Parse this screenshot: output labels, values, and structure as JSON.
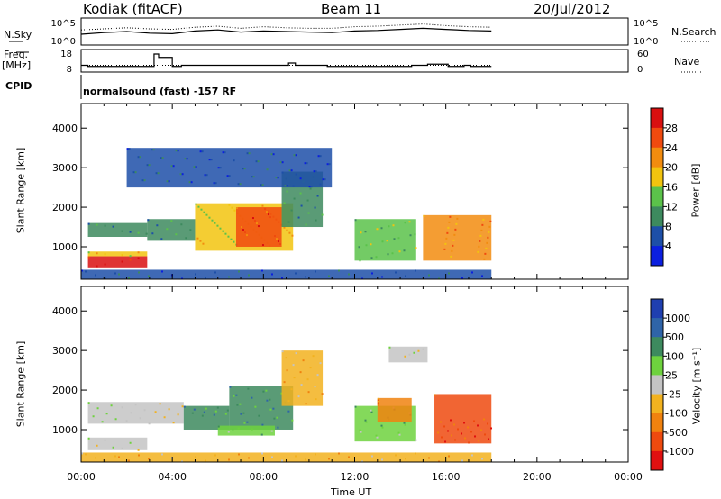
{
  "header": {
    "station": "Kodiak (fitACF)",
    "beam": "Beam 11",
    "date": "20/Jul/2012"
  },
  "labels": {
    "nsky": "N.Sky",
    "nsearch": "N.Search",
    "freq": "Freq.",
    "freq_unit": "[MHz]",
    "nave": "Nave",
    "cpid": "CPID",
    "cpid_value": "normalsound (fast) -157 RF",
    "power_axis": "Power [dB]",
    "velocity_axis": "Velocity [m s⁻¹]",
    "yaxis": "Slant Range [km]",
    "xaxis": "Time UT"
  },
  "chart_data": [
    {
      "type": "line",
      "name": "noise",
      "yticks_left": [
        "10^5",
        "10^0"
      ],
      "yticks_right": [
        "10^5",
        "10^0"
      ],
      "series": [
        {
          "name": "N.Sky",
          "style": "solid",
          "x": [
            0,
            1,
            2,
            3,
            4,
            5,
            6,
            7,
            8,
            9,
            10,
            11,
            12,
            13,
            14,
            15,
            16,
            17,
            18
          ],
          "values": [
            2.0,
            2.3,
            2.5,
            2.2,
            2.1,
            2.6,
            2.8,
            2.4,
            2.6,
            2.5,
            2.4,
            2.3,
            2.6,
            2.7,
            2.9,
            3.1,
            2.9,
            2.7,
            2.6
          ]
        },
        {
          "name": "N.Search",
          "style": "dotted",
          "x": [
            0,
            1,
            2,
            3,
            4,
            5,
            6,
            7,
            8,
            9,
            10,
            11,
            12,
            13,
            14,
            15,
            16,
            17,
            18
          ],
          "values": [
            2.8,
            3.0,
            3.2,
            3.0,
            2.9,
            3.3,
            3.5,
            3.1,
            3.4,
            3.2,
            3.1,
            3.1,
            3.4,
            3.5,
            3.7,
            3.9,
            3.6,
            3.4,
            3.3
          ]
        }
      ],
      "xlim": [
        0,
        24
      ]
    },
    {
      "type": "line",
      "name": "freq-nave",
      "yticks_left": [
        "18",
        "8"
      ],
      "yticks_right": [
        "60",
        "0"
      ],
      "series": [
        {
          "name": "Freq",
          "style": "solid",
          "x": [
            0,
            0.3,
            2.9,
            3.2,
            3.4,
            4.0,
            4.4,
            6.9,
            8.0,
            9.1,
            9.4,
            10.8,
            11.1,
            13.5,
            14.5,
            15.2,
            16.1,
            16.8,
            17.1,
            18
          ],
          "values": [
            11,
            10.5,
            10.5,
            16,
            14.5,
            10.5,
            11,
            11,
            11,
            12,
            11,
            10.5,
            10.5,
            10.5,
            11,
            11.5,
            10.5,
            11,
            10.5,
            10.5
          ]
        },
        {
          "name": "Nave",
          "style": "dotted",
          "x": [
            0,
            18
          ],
          "values": [
            18,
            18
          ]
        }
      ],
      "xlim": [
        0,
        24
      ]
    },
    {
      "type": "heatmap",
      "name": "power",
      "title": "",
      "ylabel": "Slant Range [km]",
      "ylim": [
        180,
        4620
      ],
      "xlim": [
        0,
        24
      ],
      "yticks": [
        1000,
        2000,
        3000,
        4000
      ],
      "colorbar_label": "Power [dB]",
      "colorbar_ticks": [
        4,
        8,
        12,
        16,
        20,
        24,
        28
      ],
      "colors": [
        "#0b1fe0",
        "#1d4fa8",
        "#3d8a5e",
        "#5bc24a",
        "#f2c40f",
        "#f28c0f",
        "#f04a0f",
        "#d91010"
      ],
      "regions": [
        {
          "t0": 0.3,
          "t1": 2.9,
          "r0": 480,
          "r1": 760,
          "level": 7
        },
        {
          "t0": 0.3,
          "t1": 2.9,
          "r0": 760,
          "r1": 880,
          "level": 4
        },
        {
          "t0": 0.3,
          "t1": 2.9,
          "r0": 1250,
          "r1": 1600,
          "level": 2
        },
        {
          "t0": 2.9,
          "t1": 5.0,
          "r0": 1150,
          "r1": 1700,
          "level": 2
        },
        {
          "t0": 5.0,
          "t1": 9.3,
          "r0": 900,
          "r1": 2100,
          "level": 4
        },
        {
          "t0": 6.8,
          "t1": 8.8,
          "r0": 1000,
          "r1": 2000,
          "level": 6
        },
        {
          "t0": 8.8,
          "t1": 10.6,
          "r0": 1500,
          "r1": 2900,
          "level": 2
        },
        {
          "t0": 12.0,
          "t1": 14.7,
          "r0": 650,
          "r1": 1700,
          "level": 3
        },
        {
          "t0": 15.0,
          "t1": 18.0,
          "r0": 650,
          "r1": 1800,
          "level": 5
        },
        {
          "t0": 2.0,
          "t1": 11.0,
          "r0": 2500,
          "r1": 3500,
          "level": 1
        },
        {
          "t0": 0.0,
          "t1": 18.0,
          "r0": 180,
          "r1": 420,
          "level": 1
        }
      ]
    },
    {
      "type": "heatmap",
      "name": "velocity",
      "title": "",
      "ylabel": "Slant Range [km]",
      "ylim": [
        180,
        4620
      ],
      "xlim": [
        0,
        24
      ],
      "yticks": [
        1000,
        2000,
        3000,
        4000
      ],
      "xticks": [
        "00:00",
        "04:00",
        "08:00",
        "12:00",
        "16:00",
        "20:00",
        "00:00"
      ],
      "xlabel": "Time UT",
      "colorbar_label": "Velocity [m s⁻¹]",
      "colorbar_ticks": [
        1000,
        500,
        100,
        25,
        -25,
        -100,
        -500,
        -1000
      ],
      "colors": [
        "#1f3fb0",
        "#2f64a8",
        "#3d8a5e",
        "#6ed23e",
        "#c4c4c4",
        "#f2b21f",
        "#f0820f",
        "#ee4a0f",
        "#e01010"
      ],
      "regions": [
        {
          "t0": 0.3,
          "t1": 2.9,
          "r0": 480,
          "r1": 800,
          "level": 4
        },
        {
          "t0": 0.3,
          "t1": 4.5,
          "r0": 1150,
          "r1": 1700,
          "level": 4
        },
        {
          "t0": 4.5,
          "t1": 6.5,
          "r0": 1000,
          "r1": 1600,
          "level": 2
        },
        {
          "t0": 6.5,
          "t1": 9.3,
          "r0": 1000,
          "r1": 2100,
          "level": 2
        },
        {
          "t0": 6.0,
          "t1": 8.5,
          "r0": 850,
          "r1": 1100,
          "level": 3
        },
        {
          "t0": 8.8,
          "t1": 10.6,
          "r0": 1600,
          "r1": 3000,
          "level": 5
        },
        {
          "t0": 12.0,
          "t1": 14.7,
          "r0": 700,
          "r1": 1600,
          "level": 3
        },
        {
          "t0": 13.0,
          "t1": 14.5,
          "r0": 1200,
          "r1": 1800,
          "level": 6
        },
        {
          "t0": 15.5,
          "t1": 18.0,
          "r0": 650,
          "r1": 1900,
          "level": 7
        },
        {
          "t0": 13.5,
          "t1": 15.2,
          "r0": 2700,
          "r1": 3100,
          "level": 4
        },
        {
          "t0": 0.0,
          "t1": 18.0,
          "r0": 180,
          "r1": 420,
          "level": 5
        }
      ]
    }
  ]
}
